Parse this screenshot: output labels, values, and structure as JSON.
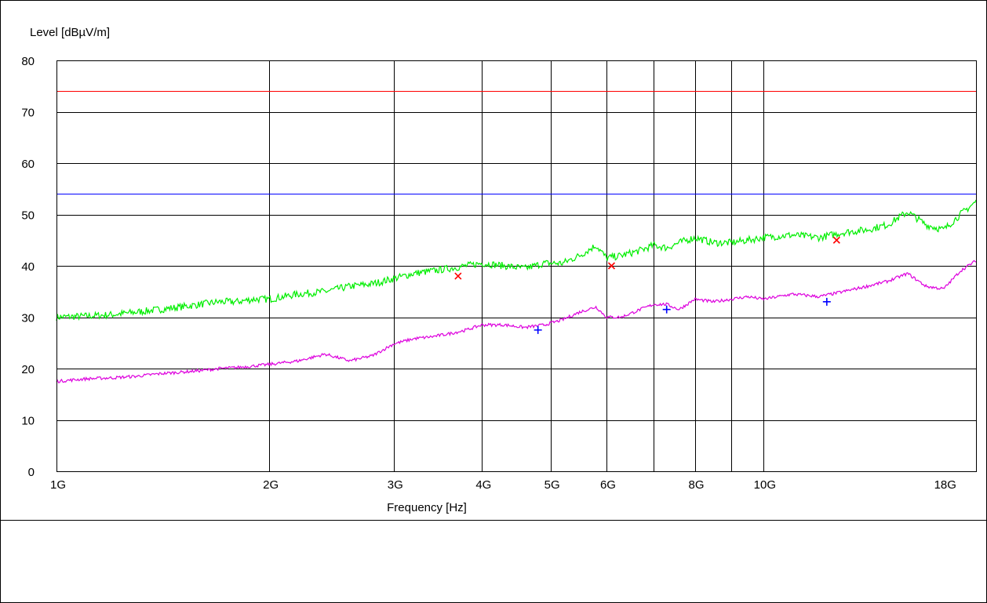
{
  "chart_data": {
    "type": "line",
    "ylabel": "Level [dBµV/m]",
    "xlabel": "Frequency [Hz]",
    "x_scale": "log",
    "ylim": [
      0,
      80
    ],
    "xlim": [
      1000000000,
      20000000000
    ],
    "grid": true,
    "y_ticks": [
      0,
      10,
      20,
      30,
      40,
      50,
      60,
      70,
      80
    ],
    "x_gridlines": [
      2000000000,
      3000000000,
      4000000000,
      5000000000,
      6000000000,
      7000000000,
      8000000000,
      9000000000,
      10000000000
    ],
    "x_tick_labels": [
      {
        "value": 1000000000,
        "label": "1G"
      },
      {
        "value": 2000000000,
        "label": "2G"
      },
      {
        "value": 3000000000,
        "label": "3G"
      },
      {
        "value": 4000000000,
        "label": "4G"
      },
      {
        "value": 5000000000,
        "label": "5G"
      },
      {
        "value": 6000000000,
        "label": "6G"
      },
      {
        "value": 8000000000,
        "label": "8G"
      },
      {
        "value": 10000000000,
        "label": "10G"
      },
      {
        "value": 18000000000,
        "label": "18G"
      }
    ],
    "limit_lines": [
      {
        "value": 74,
        "color": "#ff0000"
      },
      {
        "value": 54,
        "color": "#0000ff"
      }
    ],
    "series": [
      {
        "color": "#00ee00",
        "x": [
          1000000000.0,
          1100000000.0,
          1200000000.0,
          1300000000.0,
          1400000000.0,
          1500000000.0,
          1600000000.0,
          1700000000.0,
          1800000000.0,
          1900000000.0,
          2000000000.0,
          2200000000.0,
          2400000000.0,
          2600000000.0,
          2800000000.0,
          3000000000.0,
          3200000000.0,
          3400000000.0,
          3600000000.0,
          3800000000.0,
          4000000000.0,
          4300000000.0,
          4600000000.0,
          4900000000.0,
          5200000000.0,
          5500000000.0,
          5800000000.0,
          6000000000.0,
          6300000000.0,
          6700000000.0,
          7000000000.0,
          7300000000.0,
          7600000000.0,
          8000000000.0,
          8500000000.0,
          9000000000.0,
          9500000000.0,
          10000000000.0,
          11000000000.0,
          12000000000.0,
          13000000000.0,
          14000000000.0,
          15000000000.0,
          16000000000.0,
          17000000000.0,
          18000000000.0,
          19000000000.0,
          20000000000.0
        ],
        "values": [
          30,
          30.2,
          30.5,
          31.0,
          31.5,
          32.0,
          32.5,
          33.0,
          33.0,
          33.5,
          33.5,
          34.5,
          35.0,
          36.0,
          36.5,
          37.5,
          38.5,
          39.0,
          39.5,
          40.0,
          40.5,
          40.0,
          39.5,
          40.5,
          40.5,
          42.0,
          44.0,
          41.5,
          42.0,
          43.0,
          44.0,
          43.5,
          44.5,
          45.5,
          44.5,
          44.5,
          45.0,
          45.5,
          46.0,
          45.5,
          46.5,
          47.0,
          48.0,
          50.5,
          48.0,
          47.0,
          50.0,
          52.5
        ],
        "noise": 0.7
      },
      {
        "color": "#dd00dd",
        "x": [
          1000000000.0,
          1100000000.0,
          1200000000.0,
          1300000000.0,
          1400000000.0,
          1500000000.0,
          1600000000.0,
          1700000000.0,
          1800000000.0,
          1900000000.0,
          2000000000.0,
          2200000000.0,
          2400000000.0,
          2600000000.0,
          2800000000.0,
          3000000000.0,
          3200000000.0,
          3400000000.0,
          3600000000.0,
          3800000000.0,
          4000000000.0,
          4300000000.0,
          4600000000.0,
          4900000000.0,
          5200000000.0,
          5500000000.0,
          5800000000.0,
          6000000000.0,
          6300000000.0,
          6700000000.0,
          7000000000.0,
          7300000000.0,
          7600000000.0,
          8000000000.0,
          8500000000.0,
          9000000000.0,
          9500000000.0,
          10000000000.0,
          11000000000.0,
          12000000000.0,
          13000000000.0,
          14000000000.0,
          15000000000.0,
          16000000000.0,
          17000000000.0,
          18000000000.0,
          19000000000.0,
          20000000000.0
        ],
        "values": [
          17.5,
          18.0,
          18.2,
          18.5,
          19.0,
          19.3,
          19.6,
          20.0,
          20.2,
          20.5,
          20.8,
          21.5,
          22.8,
          21.5,
          22.5,
          24.8,
          25.8,
          26.2,
          26.8,
          27.5,
          28.5,
          28.5,
          28.0,
          28.5,
          29.5,
          31.0,
          32.0,
          30.0,
          30.0,
          31.5,
          32.5,
          32.5,
          31.5,
          33.5,
          33.0,
          33.5,
          34.0,
          33.5,
          34.5,
          34.0,
          35.0,
          36.0,
          37.0,
          38.5,
          36.0,
          35.5,
          39.0,
          41.0
        ],
        "noise": 0.3
      }
    ],
    "markers": [
      {
        "symbol": "x",
        "color": "#ff0000",
        "x": 3700000000,
        "y": 38
      },
      {
        "symbol": "x",
        "color": "#ff0000",
        "x": 6100000000,
        "y": 40
      },
      {
        "symbol": "x",
        "color": "#ff0000",
        "x": 12700000000,
        "y": 45
      },
      {
        "symbol": "+",
        "color": "#0000ff",
        "x": 4800000000,
        "y": 27.5
      },
      {
        "symbol": "+",
        "color": "#0000ff",
        "x": 7300000000,
        "y": 31.5
      },
      {
        "symbol": "+",
        "color": "#0000ff",
        "x": 12300000000,
        "y": 33
      }
    ]
  }
}
